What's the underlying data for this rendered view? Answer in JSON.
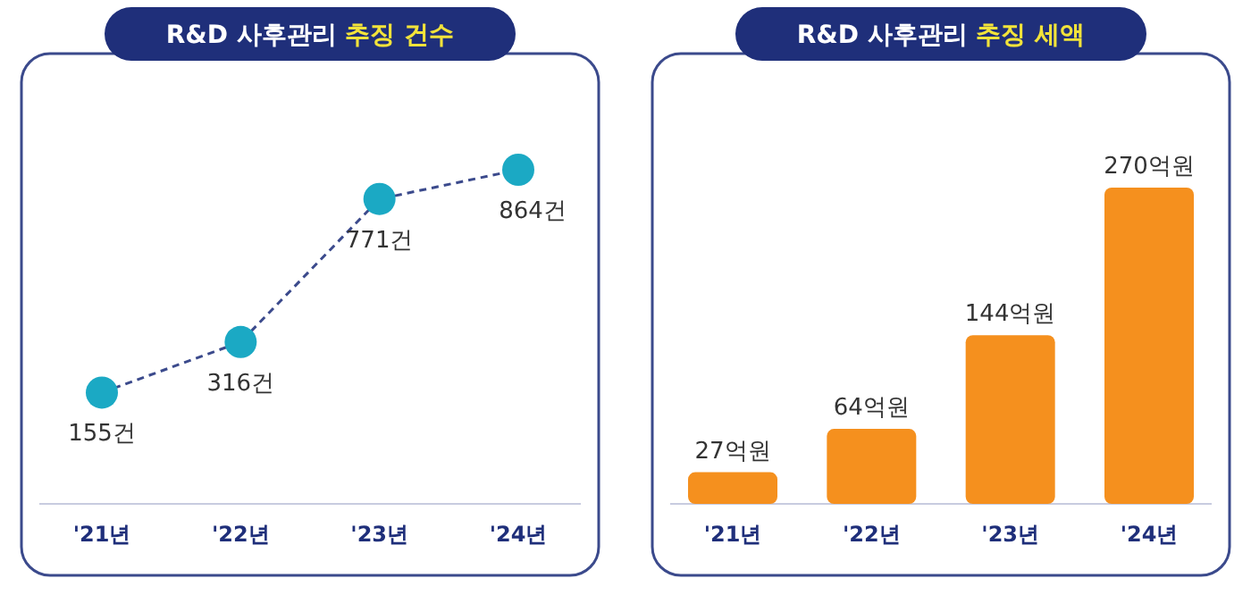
{
  "chart_data": [
    {
      "type": "line",
      "title": "R&D 사후관리 추징 건수",
      "categories": [
        "'21년",
        "'22년",
        "'23년",
        "'24년"
      ],
      "series": [
        {
          "color": "#1ba9c4",
          "values": [
            155,
            316,
            771,
            864
          ],
          "value_labels": [
            "155건",
            "316건",
            "771건",
            "864건"
          ]
        }
      ],
      "marker": "circle",
      "line_style": "dashed"
    },
    {
      "type": "bar",
      "title": "R&D 사후관리 추징 세액",
      "categories": [
        "'21년",
        "'22년",
        "'23년",
        "'24년"
      ],
      "series": [
        {
          "color": "#f5901e",
          "values": [
            27,
            64,
            144,
            270
          ],
          "value_labels": [
            "27억원",
            "64억원",
            "144억원",
            "270억원"
          ]
        }
      ]
    }
  ]
}
